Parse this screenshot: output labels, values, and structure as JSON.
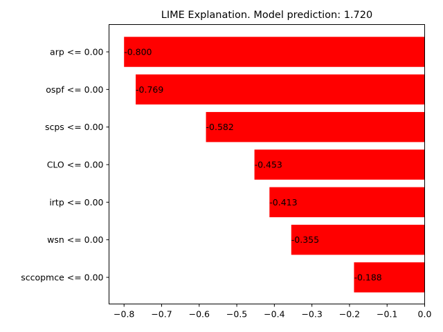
{
  "chart_data": {
    "type": "bar",
    "orientation": "horizontal",
    "title": "LIME Explanation. Model prediction: 1.720",
    "xlabel": "",
    "ylabel": "",
    "categories": [
      "arp <= 0.00",
      "ospf <= 0.00",
      "scps <= 0.00",
      "CLO <= 0.00",
      "irtp <= 0.00",
      "wsn <= 0.00",
      "sccopmce <= 0.00"
    ],
    "values": [
      -0.8,
      -0.769,
      -0.582,
      -0.453,
      -0.413,
      -0.355,
      -0.188
    ],
    "data_labels": [
      "-0.800",
      "-0.769",
      "-0.582",
      "-0.453",
      "-0.413",
      "-0.355",
      "-0.188"
    ],
    "xlim": [
      -0.84,
      0.0
    ],
    "xticks": [
      -0.8,
      -0.7,
      -0.6,
      -0.5,
      -0.4,
      -0.3,
      -0.2,
      -0.1,
      0.0
    ],
    "xtick_labels": [
      "−0.8",
      "−0.7",
      "−0.6",
      "−0.5",
      "−0.4",
      "−0.3",
      "−0.2",
      "−0.1",
      "0.0"
    ],
    "bar_color": "#ff0000",
    "grid": false,
    "legend": "none"
  }
}
